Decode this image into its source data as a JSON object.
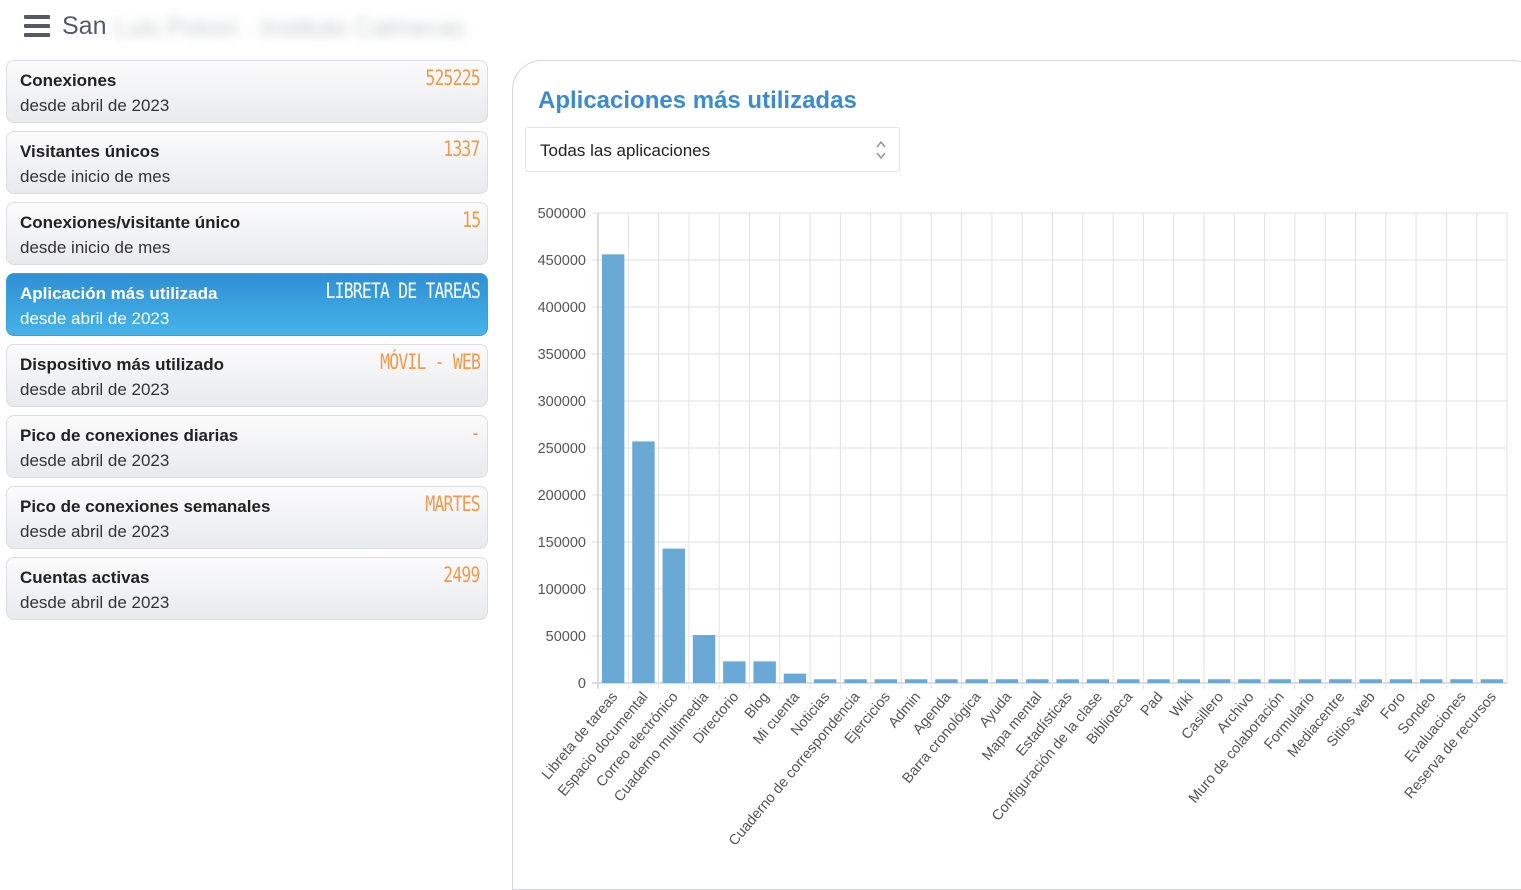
{
  "header": {
    "title": "San",
    "title_blurred": "Luis Potosí - Instituto Calmecac"
  },
  "cards": [
    {
      "label": "Conexiones",
      "sub": "desde abril de 2023",
      "value": "525225",
      "active": false
    },
    {
      "label": "Visitantes únicos",
      "sub": "desde inicio de mes",
      "value": "1337",
      "active": false
    },
    {
      "label": "Conexiones/visitante único",
      "sub": "desde inicio de mes",
      "value": "15",
      "active": false
    },
    {
      "label": "Aplicación más utilizada",
      "sub": "desde abril de 2023",
      "value": "LIBRETA DE TAREAS",
      "active": true
    },
    {
      "label": "Dispositivo más utilizado",
      "sub": "desde abril de 2023",
      "value": "MÓVIL - WEB",
      "active": false
    },
    {
      "label": "Pico de conexiones diarias",
      "sub": "desde abril de 2023",
      "value": "-",
      "active": false
    },
    {
      "label": "Pico de conexiones semanales",
      "sub": "desde abril de 2023",
      "value": "MARTES",
      "active": false
    },
    {
      "label": "Cuentas activas",
      "sub": "desde abril de 2023",
      "value": "2499",
      "active": false
    }
  ],
  "panel": {
    "title": "Aplicaciones más utilizadas",
    "select_value": "Todas las aplicaciones"
  },
  "colors": {
    "accent": "#3a8ccc",
    "bar": "#6aa9d6",
    "value": "#f09a4a",
    "active_card": "#3b9fdc"
  },
  "chart_data": {
    "type": "bar",
    "categories": [
      "Libreta de tareas",
      "Espacio documental",
      "Correo electrónico",
      "Cuaderno multimedia",
      "Directorio",
      "Blog",
      "Mi cuenta",
      "Noticias",
      "Cuaderno de correspondencia",
      "Ejercicios",
      "Admin",
      "Agenda",
      "Barra cronológica",
      "Ayuda",
      "Mapa mental",
      "Estadísticas",
      "Configuración de la clase",
      "Biblioteca",
      "Pad",
      "Wiki",
      "Casillero",
      "Archivo",
      "Muro de colaboración",
      "Formulario",
      "Mediacentre",
      "Sitios web",
      "Foro",
      "Sondeo",
      "Evaluaciones",
      "Reserva de recursos"
    ],
    "values": [
      456000,
      257000,
      143000,
      51000,
      23000,
      23000,
      10000,
      4000,
      4000,
      4000,
      4000,
      4000,
      4000,
      4000,
      4000,
      4000,
      4000,
      4000,
      4000,
      4000,
      4000,
      4000,
      4000,
      4000,
      4000,
      4000,
      4000,
      4000,
      4000,
      4000
    ],
    "yticks": [
      "0",
      "50000",
      "100000",
      "150000",
      "200000",
      "250000",
      "300000",
      "350000",
      "400000",
      "450000",
      "500000"
    ],
    "ylim": [
      0,
      500000
    ],
    "grid": true
  }
}
